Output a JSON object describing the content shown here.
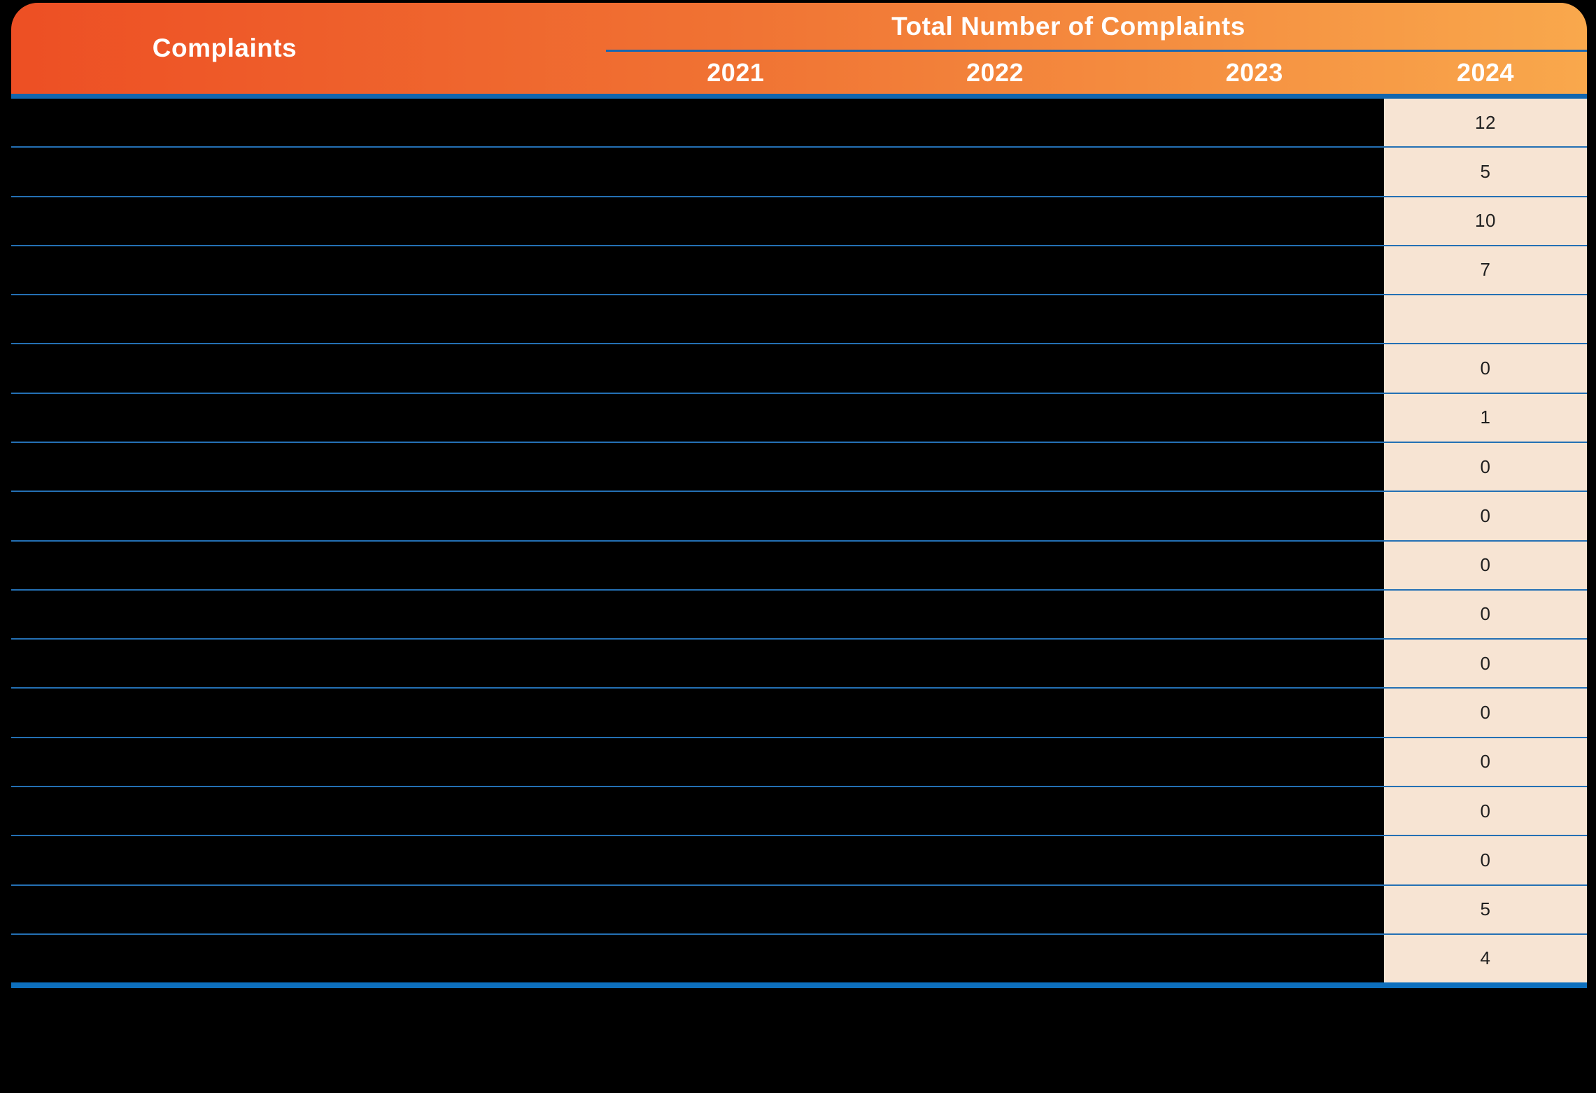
{
  "header": {
    "complaints_label": "Complaints",
    "total_label": "Total Number of Complaints",
    "years": [
      "2021",
      "2022",
      "2023",
      "2024"
    ]
  },
  "values_2024": [
    "12",
    "5",
    "10",
    "7",
    "",
    "0",
    "1",
    "0",
    "0",
    "0",
    "0",
    "0",
    "0",
    "0",
    "0",
    "0",
    "5",
    "4"
  ],
  "chart_data": {
    "type": "table",
    "title": "Total Number of Complaints",
    "column_headers": [
      "Complaints",
      "2021",
      "2022",
      "2023",
      "2024"
    ],
    "rows": [
      [
        "",
        "",
        "",
        "",
        "12"
      ],
      [
        "",
        "",
        "",
        "",
        "5"
      ],
      [
        "",
        "",
        "",
        "",
        "10"
      ],
      [
        "",
        "",
        "",
        "",
        "7"
      ],
      [
        "",
        "",
        "",
        "",
        ""
      ],
      [
        "",
        "",
        "",
        "",
        "0"
      ],
      [
        "",
        "",
        "",
        "",
        "1"
      ],
      [
        "",
        "",
        "",
        "",
        "0"
      ],
      [
        "",
        "",
        "",
        "",
        "0"
      ],
      [
        "",
        "",
        "",
        "",
        "0"
      ],
      [
        "",
        "",
        "",
        "",
        "0"
      ],
      [
        "",
        "",
        "",
        "",
        "0"
      ],
      [
        "",
        "",
        "",
        "",
        "0"
      ],
      [
        "",
        "",
        "",
        "",
        "0"
      ],
      [
        "",
        "",
        "",
        "",
        "0"
      ],
      [
        "",
        "",
        "",
        "",
        "0"
      ],
      [
        "",
        "",
        "",
        "",
        "5"
      ],
      [
        "",
        "",
        "",
        "",
        "4"
      ]
    ]
  },
  "colors": {
    "header_gradient_left": "#ED4F24",
    "header_gradient_right": "#F9A84C",
    "header_text": "#FFFFFF",
    "title_underline_blue": "#1A67B0",
    "header_divider_blue": "#1266AE",
    "row_line_blue": "#2470B4",
    "footer_bar_blue": "#0D6FBD",
    "value_column_bg": "#F7E4D3",
    "value_text": "#1F1F1F",
    "page_bg": "#000000"
  }
}
